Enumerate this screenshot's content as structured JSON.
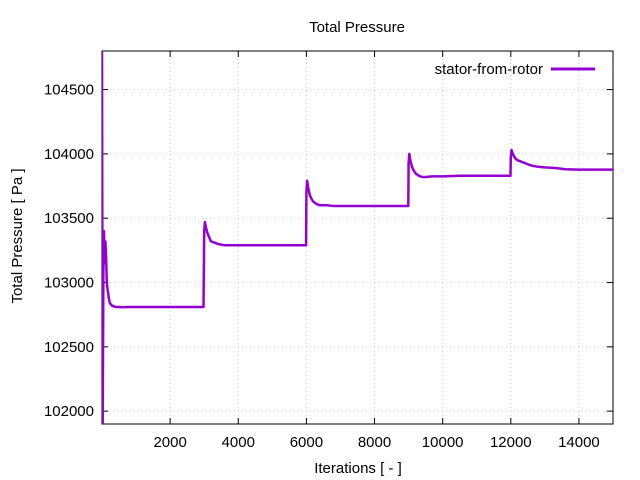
{
  "chart_data": {
    "type": "line",
    "title": "Total Pressure",
    "xlabel": "Iterations [ - ]",
    "ylabel": "Total Pressure [ Pa ]",
    "xlim": [
      0,
      15000
    ],
    "ylim": [
      101900,
      104800
    ],
    "xticks": [
      2000,
      4000,
      6000,
      8000,
      10000,
      12000,
      14000
    ],
    "yticks": [
      102000,
      102500,
      103000,
      103500,
      104000,
      104500
    ],
    "grid": true,
    "legend_position": "top-right",
    "series": [
      {
        "name": "stator-from-rotor",
        "color": "#9400d3",
        "x": [
          0,
          20,
          40,
          60,
          80,
          100,
          120,
          140,
          160,
          180,
          200,
          230,
          260,
          300,
          350,
          400,
          500,
          600,
          800,
          1000,
          1500,
          2000,
          2500,
          2980,
          3000,
          3020,
          3060,
          3100,
          3150,
          3200,
          3300,
          3400,
          3500,
          3600,
          3800,
          4000,
          4500,
          5000,
          5500,
          5990,
          6000,
          6020,
          6060,
          6100,
          6150,
          6200,
          6300,
          6400,
          6500,
          6600,
          6800,
          7000,
          7500,
          8000,
          8500,
          8990,
          9000,
          9020,
          9060,
          9100,
          9150,
          9200,
          9300,
          9400,
          9500,
          9700,
          10000,
          10500,
          11000,
          11500,
          11990,
          12000,
          12020,
          12060,
          12100,
          12150,
          12200,
          12300,
          12400,
          12600,
          12800,
          13000,
          13300,
          13600,
          14000,
          14500,
          15000
        ],
        "y": [
          104800,
          101900,
          103100,
          103400,
          103150,
          103320,
          103200,
          103000,
          102950,
          102920,
          102880,
          102840,
          102830,
          102820,
          102815,
          102810,
          102810,
          102808,
          102810,
          102810,
          102810,
          102810,
          102810,
          102810,
          103400,
          103470,
          103420,
          103380,
          103350,
          103320,
          103310,
          103300,
          103295,
          103290,
          103290,
          103290,
          103290,
          103290,
          103290,
          103290,
          103700,
          103790,
          103730,
          103680,
          103650,
          103630,
          103610,
          103600,
          103600,
          103600,
          103595,
          103595,
          103595,
          103595,
          103595,
          103595,
          103930,
          104000,
          103940,
          103900,
          103870,
          103850,
          103830,
          103820,
          103820,
          103825,
          103825,
          103830,
          103830,
          103830,
          103830,
          103980,
          104030,
          104000,
          103980,
          103960,
          103950,
          103940,
          103930,
          103910,
          103900,
          103895,
          103890,
          103880,
          103878,
          103878,
          103878
        ]
      }
    ]
  }
}
